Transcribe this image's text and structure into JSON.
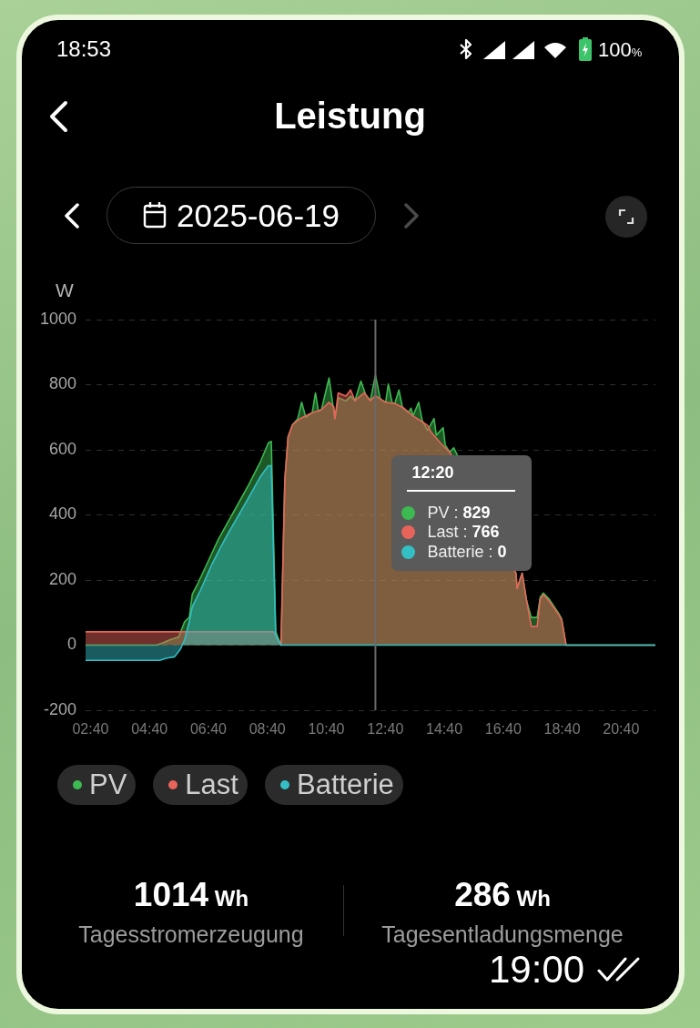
{
  "chart_data": {
    "type": "area",
    "title": "Leistung",
    "subtitle": "2025-06-19",
    "ylabel": "W",
    "xlim": [
      2.5,
      21.83
    ],
    "xticks": [
      {
        "value": 2.667,
        "label": "02:40"
      },
      {
        "value": 4.667,
        "label": "04:40"
      },
      {
        "value": 6.667,
        "label": "06:40"
      },
      {
        "value": 8.667,
        "label": "08:40"
      },
      {
        "value": 10.667,
        "label": "10:40"
      },
      {
        "value": 12.667,
        "label": "12:40"
      },
      {
        "value": 14.667,
        "label": "14:40"
      },
      {
        "value": 16.667,
        "label": "16:40"
      },
      {
        "value": 18.667,
        "label": "18:40"
      },
      {
        "value": 20.667,
        "label": "20:40"
      }
    ],
    "ylim": [
      -200,
      1000
    ],
    "yticks": [
      -200,
      0,
      200,
      400,
      600,
      800,
      1000
    ],
    "grid": "y",
    "legend": "bottom left",
    "series": [
      {
        "name": "PV",
        "color": "#3cb950",
        "x": [
          2.5,
          4.92,
          5.14,
          5.35,
          5.66,
          5.86,
          6.02,
          6.12,
          6.28,
          6.59,
          7.0,
          7.51,
          8.03,
          8.44,
          8.7,
          8.8,
          8.95,
          9.13,
          9.26,
          9.37,
          9.52,
          9.7,
          9.83,
          9.97,
          10.19,
          10.3,
          10.4,
          10.5,
          10.76,
          10.9,
          10.96,
          11.07,
          11.33,
          11.49,
          11.64,
          11.84,
          12.0,
          12.16,
          12.333,
          12.5,
          12.68,
          12.77,
          12.9,
          12.99,
          13.13,
          13.25,
          13.45,
          13.54,
          13.61,
          13.8,
          13.92,
          14.1,
          14.32,
          14.4,
          14.63,
          14.7,
          14.85,
          14.99,
          16.0,
          17.1,
          17.14,
          17.31,
          17.46,
          17.62,
          17.82,
          17.92,
          18.03,
          18.23,
          18.54,
          18.65,
          18.8,
          21.83
        ],
        "values": [
          0,
          0,
          8,
          16,
          25,
          72,
          86,
          156,
          184,
          244,
          324,
          407,
          492,
          565,
          621,
          626,
          41,
          0,
          508,
          640,
          677,
          696,
          746,
          700,
          714,
          775,
          718,
          723,
          821,
          732,
          696,
          760,
          750,
          765,
          751,
          811,
          770,
          751,
          829,
          755,
          746,
          802,
          745,
          742,
          784,
          730,
          715,
          728,
          704,
          746,
          690,
          660,
          696,
          645,
          668,
          615,
          593,
          606,
          null,
          221,
          174,
          221,
          137,
          85,
          85,
          146,
          160,
          141,
          99,
          81,
          0,
          0
        ]
      },
      {
        "name": "Last",
        "color": "#e8645a",
        "x": [
          2.5,
          8.88,
          9.13,
          9.26,
          9.37,
          9.52,
          9.78,
          10.19,
          10.5,
          10.76,
          10.92,
          10.96,
          11.07,
          11.33,
          11.49,
          11.64,
          11.95,
          12.16,
          12.333,
          12.68,
          12.99,
          13.3,
          13.61,
          13.92,
          14.1,
          14.23,
          14.54,
          14.85,
          16.0,
          17.1,
          17.14,
          17.31,
          17.46,
          17.62,
          17.82,
          17.92,
          18.03,
          18.23,
          18.54,
          18.65,
          18.8,
          21.83
        ],
        "values": [
          41,
          41,
          0,
          508,
          640,
          677,
          696,
          714,
          723,
          746,
          732,
          696,
          775,
          765,
          784,
          751,
          775,
          751,
          766,
          746,
          742,
          728,
          704,
          686,
          675,
          653,
          621,
          593,
          null,
          221,
          174,
          221,
          137,
          57,
          57,
          140,
          155,
          135,
          95,
          78,
          0,
          0
        ]
      },
      {
        "name": "Batterie",
        "color": "#34bfc4",
        "x": [
          2.5,
          5.01,
          5.26,
          5.52,
          5.72,
          5.86,
          6.02,
          6.12,
          6.38,
          6.79,
          7.21,
          7.62,
          8.03,
          8.44,
          8.7,
          8.8,
          8.95,
          9.13,
          21.83
        ],
        "values": [
          -47,
          -47,
          -40,
          -36,
          -12,
          16,
          72,
          118,
          165,
          249,
          323,
          388,
          453,
          519,
          551,
          551,
          30,
          0,
          0
        ]
      }
    ],
    "ref_lines": [
      {
        "axis": "x",
        "value": 12.333,
        "label": "12:20",
        "color": "#6a6a6a"
      }
    ],
    "annotations": [
      "18:53",
      "100%",
      "PV : 829",
      "Last : 766",
      "Batterie : 0",
      "1014 Wh",
      "Tagesstromerzeugung",
      "286 Wh",
      "Tagesentladungsmenge",
      "19:00"
    ]
  }
}
